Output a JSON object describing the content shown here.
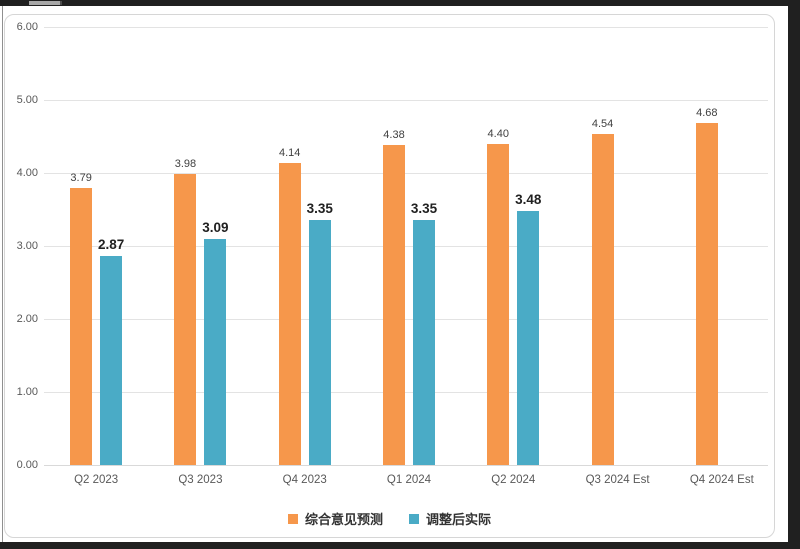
{
  "theme": {
    "edge_color": "#202020",
    "panel_border_color": "#d6d6d6",
    "gridline_color": "#e3e3e3",
    "axis_text_color": "#595959"
  },
  "chart_data": {
    "type": "bar",
    "title": "",
    "categories": [
      "Q2 2023",
      "Q3 2023",
      "Q4 2023",
      "Q1 2024",
      "Q2 2024",
      "Q3 2024 Est",
      "Q4 2024 Est"
    ],
    "series": [
      {
        "name": "综合意见预测",
        "color": "#F6974B",
        "values": [
          3.79,
          3.98,
          4.14,
          4.38,
          4.4,
          4.54,
          4.68
        ],
        "labels": [
          "3.79",
          "3.98",
          "4.14",
          "4.38",
          "4.40",
          "4.54",
          "4.68"
        ],
        "label_style": "normal"
      },
      {
        "name": "调整后实际",
        "color": "#4AABC6",
        "values": [
          2.87,
          3.09,
          3.35,
          3.35,
          3.48,
          null,
          null
        ],
        "labels": [
          "2.87",
          "3.09",
          "3.35",
          "3.35",
          "3.48",
          null,
          null
        ],
        "label_style": "bold"
      }
    ],
    "ylim": [
      0,
      6
    ],
    "ytick_step": 1,
    "ytick_labels": [
      "6.00",
      "5.00",
      "4.00",
      "3.00",
      "2.00",
      "1.00",
      "0.00"
    ],
    "grid": "horizontal",
    "legend_position": "bottom",
    "value_labels": true
  }
}
